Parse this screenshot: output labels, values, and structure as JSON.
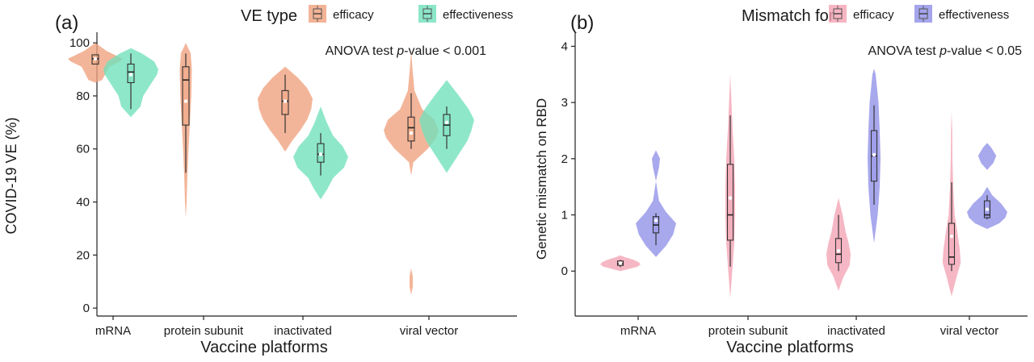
{
  "chart_data": [
    {
      "type": "violin",
      "panel_label": "(a)",
      "legend_title": "VE type",
      "legend": [
        {
          "name": "efficacy",
          "color": "#f0a07c"
        },
        {
          "name": "effectiveness",
          "color": "#6fe0bb"
        }
      ],
      "annotation": "ANOVA test p-value < 0.001",
      "annotation_parts": [
        "ANOVA test ",
        "p",
        "-value < 0.001"
      ],
      "xlabel": "Vaccine platforms",
      "ylabel": "COVID-19 VE (%)",
      "ylim": [
        -3,
        104
      ],
      "yticks": [
        0,
        20,
        40,
        60,
        80,
        100
      ],
      "categories": [
        "mRNA",
        "protein subunit",
        "inactivated",
        "viral vector"
      ],
      "series": [
        {
          "name": "efficacy",
          "color": "#f0a07c",
          "items": [
            {
              "category": "mRNA",
              "q1": 92,
              "median": 94,
              "q3": 95.5,
              "wlo": 92,
              "whi": 95.5,
              "mean": 94,
              "profile": [
                [
                  85,
                  0
                ],
                [
                  86,
                  0.25
                ],
                [
                  88,
                  0.35
                ],
                [
                  91,
                  0.5
                ],
                [
                  93,
                  0.9
                ],
                [
                  94,
                  1
                ],
                [
                  95.5,
                  0.7
                ],
                [
                  97,
                  0.4
                ],
                [
                  98.5,
                  0.2
                ],
                [
                  100,
                  0
                ]
              ]
            },
            {
              "category": "protein subunit",
              "q1": 69,
              "median": 86,
              "q3": 91,
              "wlo": 51,
              "whi": 96,
              "mean": 78,
              "profile": [
                [
                  34,
                  0
                ],
                [
                  40,
                  0.03
                ],
                [
                  50,
                  0.06
                ],
                [
                  60,
                  0.1
                ],
                [
                  70,
                  0.15
                ],
                [
                  80,
                  0.2
                ],
                [
                  90,
                  0.22
                ],
                [
                  96,
                  0.18
                ],
                [
                  100,
                  0
                ]
              ]
            },
            {
              "category": "inactivated",
              "q1": 73,
              "median": 78,
              "q3": 82,
              "wlo": 66,
              "whi": 88,
              "mean": 78,
              "profile": [
                [
                  59,
                  0
                ],
                [
                  63,
                  0.25
                ],
                [
                  67,
                  0.55
                ],
                [
                  71,
                  0.8
                ],
                [
                  75,
                  0.95
                ],
                [
                  79,
                  1
                ],
                [
                  83,
                  0.8
                ],
                [
                  87,
                  0.45
                ],
                [
                  91,
                  0
                ]
              ]
            },
            {
              "category": "viral vector",
              "q1": 63,
              "median": 68,
              "q3": 72,
              "wlo": 60,
              "whi": 81,
              "mean": 66,
              "profile": [
                [
                  5,
                  0
                ],
                [
                  8,
                  0.06
                ],
                [
                  12,
                  0.06
                ],
                [
                  15,
                  0
                ],
                [
                  25,
                  0
                ],
                [
                  50,
                  0
                ],
                [
                  55,
                  0.08
                ],
                [
                  60,
                  0.6
                ],
                [
                  64,
                  0.9
                ],
                [
                  67,
                  1
                ],
                [
                  71,
                  0.85
                ],
                [
                  75,
                  0.4
                ],
                [
                  82,
                  0.12
                ],
                [
                  90,
                  0.05
                ],
                [
                  97,
                  0
                ]
              ]
            }
          ]
        },
        {
          "name": "effectiveness",
          "color": "#6fe0bb",
          "items": [
            {
              "category": "mRNA",
              "q1": 85,
              "median": 89,
              "q3": 92,
              "wlo": 75,
              "whi": 96,
              "mean": 88,
              "profile": [
                [
                  72,
                  0
                ],
                [
                  76,
                  0.35
                ],
                [
                  80,
                  0.45
                ],
                [
                  84,
                  0.7
                ],
                [
                  88,
                  0.95
                ],
                [
                  90,
                  1
                ],
                [
                  93,
                  0.85
                ],
                [
                  96,
                  0.4
                ],
                [
                  98,
                  0
                ]
              ]
            },
            {
              "category": "inactivated",
              "q1": 55,
              "median": 58,
              "q3": 62,
              "wlo": 50,
              "whi": 66,
              "mean": 58,
              "profile": [
                [
                  41,
                  0
                ],
                [
                  45,
                  0.25
                ],
                [
                  49,
                  0.45
                ],
                [
                  53,
                  0.85
                ],
                [
                  57,
                  1
                ],
                [
                  61,
                  0.8
                ],
                [
                  65,
                  0.45
                ],
                [
                  70,
                  0.22
                ],
                [
                  76,
                  0
                ]
              ]
            },
            {
              "category": "viral vector",
              "q1": 65,
              "median": 69,
              "q3": 73,
              "wlo": 60,
              "whi": 76,
              "mean": 70,
              "profile": [
                [
                  51,
                  0
                ],
                [
                  55,
                  0.25
                ],
                [
                  59,
                  0.5
                ],
                [
                  63,
                  0.75
                ],
                [
                  67,
                  0.9
                ],
                [
                  71,
                  1
                ],
                [
                  75,
                  0.8
                ],
                [
                  80,
                  0.45
                ],
                [
                  86,
                  0
                ]
              ]
            }
          ]
        }
      ]
    },
    {
      "type": "violin",
      "panel_label": "(b)",
      "legend_title": "Mismatch for",
      "legend": [
        {
          "name": "efficacy",
          "color": "#f4a3b3"
        },
        {
          "name": "effectiveness",
          "color": "#8f8fe8"
        }
      ],
      "annotation": "ANOVA test p-value < 0.05",
      "annotation_parts": [
        "ANOVA test ",
        "p",
        "-value < 0.05"
      ],
      "xlabel": "Vaccine platforms",
      "ylabel": "Genetic mismatch on RBD",
      "ylim": [
        -0.8,
        4.25
      ],
      "yticks": [
        0,
        1,
        2,
        3,
        4
      ],
      "categories": [
        "mRNA",
        "protein subunit",
        "inactivated",
        "viral vector"
      ],
      "series": [
        {
          "name": "efficacy",
          "color": "#f4a3b3",
          "items": [
            {
              "category": "mRNA",
              "q1": 0.1,
              "median": 0.13,
              "q3": 0.18,
              "wlo": 0.07,
              "whi": 0.2,
              "mean": 0.14,
              "profile": [
                [
                  0,
                  0
                ],
                [
                  0.04,
                  0.45
                ],
                [
                  0.08,
                  0.85
                ],
                [
                  0.12,
                  1
                ],
                [
                  0.16,
                  0.9
                ],
                [
                  0.2,
                  0.65
                ],
                [
                  0.25,
                  0.2
                ],
                [
                  0.28,
                  0
                ]
              ]
            },
            {
              "category": "protein subunit",
              "q1": 0.55,
              "median": 1.0,
              "q3": 1.9,
              "wlo": 0.08,
              "whi": 2.77,
              "mean": 1.3,
              "profile": [
                [
                  -0.48,
                  0
                ],
                [
                  0,
                  0.1
                ],
                [
                  0.5,
                  0.2
                ],
                [
                  1.0,
                  0.24
                ],
                [
                  1.5,
                  0.24
                ],
                [
                  2.0,
                  0.2
                ],
                [
                  2.5,
                  0.12
                ],
                [
                  3.0,
                  0.06
                ],
                [
                  3.5,
                  0
                ]
              ]
            },
            {
              "category": "inactivated",
              "q1": 0.15,
              "median": 0.3,
              "q3": 0.58,
              "wlo": 0.0,
              "whi": 1.0,
              "mean": 0.36,
              "profile": [
                [
                  -0.35,
                  0
                ],
                [
                  -0.1,
                  0.25
                ],
                [
                  0.1,
                  0.55
                ],
                [
                  0.3,
                  0.6
                ],
                [
                  0.5,
                  0.5
                ],
                [
                  0.7,
                  0.35
                ],
                [
                  1.0,
                  0.2
                ],
                [
                  1.3,
                  0
                ]
              ]
            },
            {
              "category": "viral vector",
              "q1": 0.12,
              "median": 0.25,
              "q3": 0.85,
              "wlo": 0.0,
              "whi": 1.58,
              "mean": 0.62,
              "profile": [
                [
                  -0.45,
                  0
                ],
                [
                  -0.1,
                  0.25
                ],
                [
                  0.15,
                  0.45
                ],
                [
                  0.4,
                  0.4
                ],
                [
                  0.7,
                  0.28
                ],
                [
                  1.0,
                  0.15
                ],
                [
                  1.5,
                  0.08
                ],
                [
                  2.0,
                  0.04
                ],
                [
                  2.5,
                  0.03
                ],
                [
                  2.85,
                  0
                ]
              ]
            }
          ]
        },
        {
          "name": "effectiveness",
          "color": "#8f8fe8",
          "items": [
            {
              "category": "mRNA",
              "q1": 0.68,
              "median": 0.82,
              "q3": 0.97,
              "wlo": 0.46,
              "whi": 1.03,
              "mean": 0.9,
              "profile": [
                [
                  0.25,
                  0
                ],
                [
                  0.45,
                  0.5
                ],
                [
                  0.65,
                  0.85
                ],
                [
                  0.85,
                  1
                ],
                [
                  1.05,
                  0.5
                ],
                [
                  1.25,
                  0.15
                ],
                [
                  1.6,
                  0
                ],
                [
                  1.85,
                  0.15
                ],
                [
                  2.0,
                  0.2
                ],
                [
                  2.15,
                  0
                ]
              ]
            },
            {
              "category": "inactivated",
              "q1": 1.6,
              "median": 2.05,
              "q3": 2.5,
              "wlo": 1.18,
              "whi": 2.95,
              "mean": 2.07,
              "profile": [
                [
                  0.5,
                  0
                ],
                [
                  1.0,
                  0.18
                ],
                [
                  1.5,
                  0.28
                ],
                [
                  2.0,
                  0.32
                ],
                [
                  2.5,
                  0.28
                ],
                [
                  3.0,
                  0.22
                ],
                [
                  3.5,
                  0.08
                ],
                [
                  3.6,
                  0
                ]
              ]
            },
            {
              "category": "viral vector",
              "q1": 0.95,
              "median": 1.0,
              "q3": 1.25,
              "wlo": 0.92,
              "whi": 1.35,
              "mean": 1.1,
              "profile": [
                [
                  0.75,
                  0
                ],
                [
                  0.85,
                  0.6
                ],
                [
                  0.95,
                  0.9
                ],
                [
                  1.05,
                  1
                ],
                [
                  1.2,
                  0.7
                ],
                [
                  1.35,
                  0.25
                ],
                [
                  1.5,
                  0
                ],
                [
                  1.8,
                  0
                ],
                [
                  1.92,
                  0.3
                ],
                [
                  2.05,
                  0.45
                ],
                [
                  2.2,
                  0.2
                ],
                [
                  2.28,
                  0
                ]
              ]
            }
          ]
        }
      ]
    }
  ]
}
